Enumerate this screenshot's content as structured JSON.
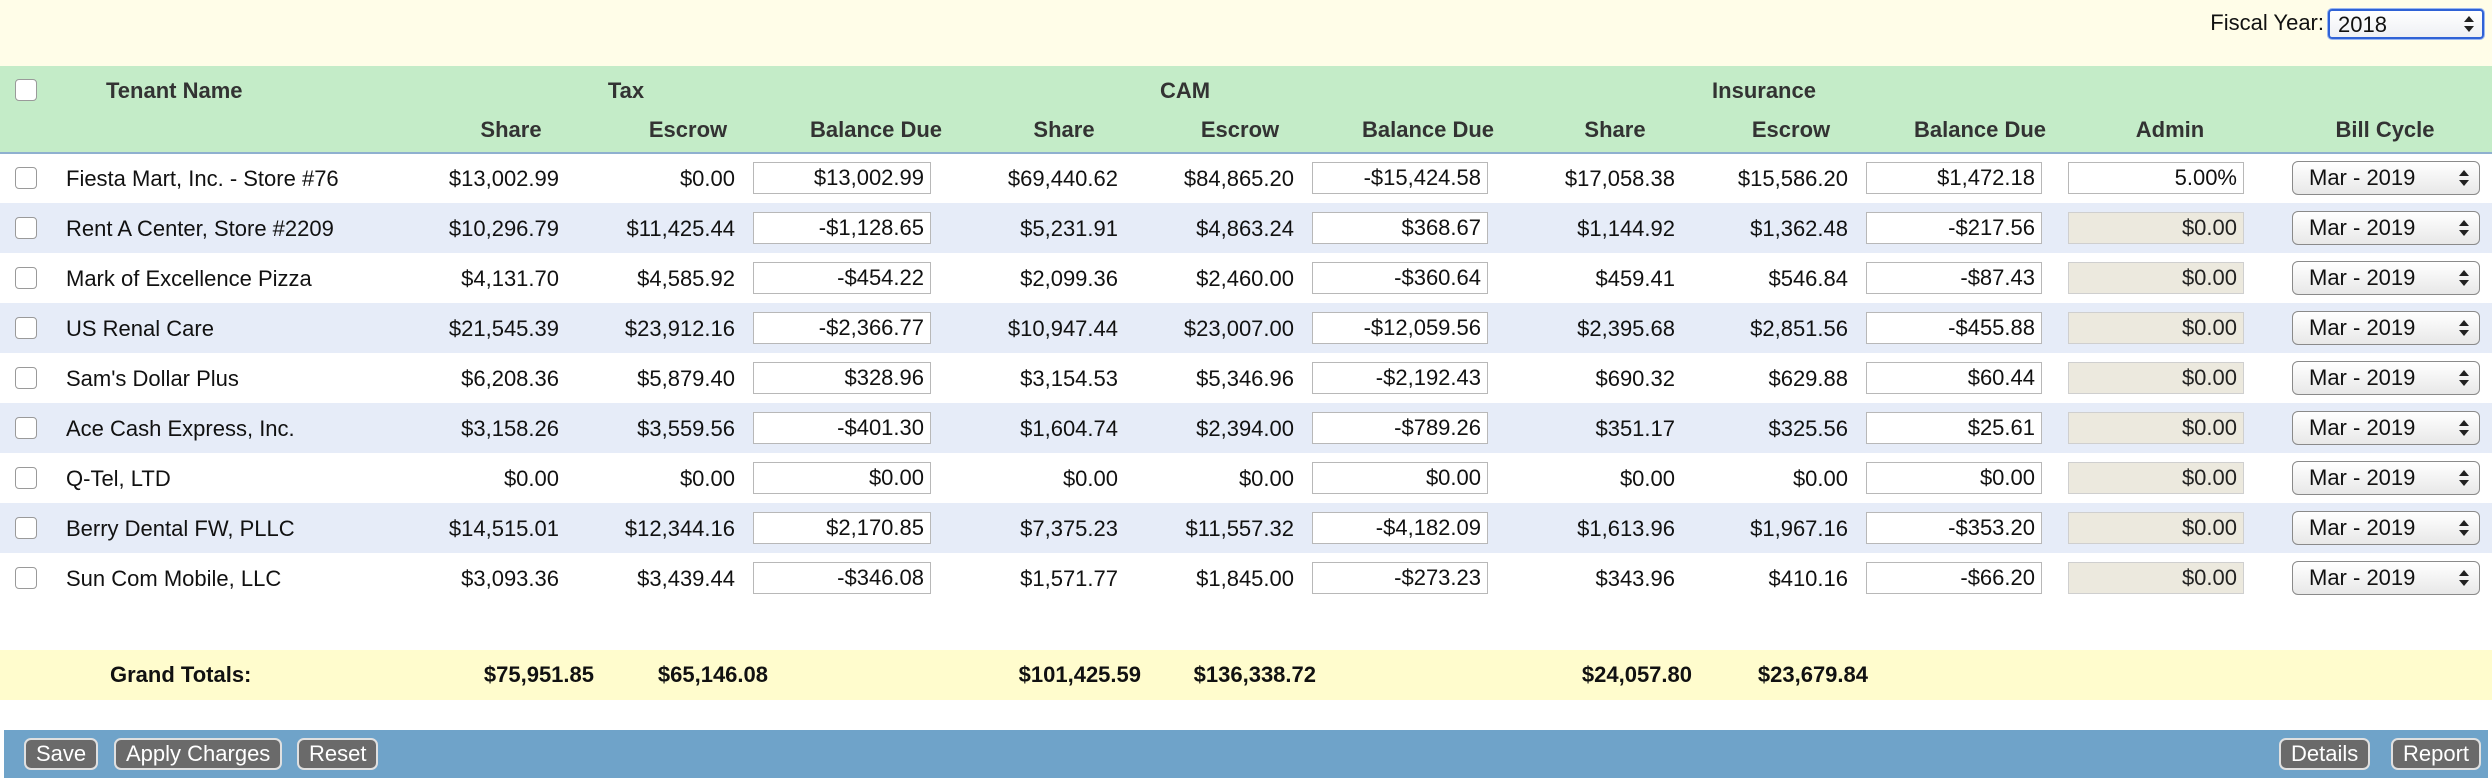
{
  "fiscal_year": {
    "label": "Fiscal Year:",
    "value": "2018"
  },
  "header": {
    "tenant_name": "Tenant Name",
    "groups": {
      "tax": "Tax",
      "cam": "CAM",
      "insurance": "Insurance"
    },
    "share": "Share",
    "escrow": "Escrow",
    "balance_due": "Balance Due",
    "admin": "Admin",
    "bill_cycle": "Bill Cycle"
  },
  "rows": [
    {
      "name": "Fiesta Mart, Inc. - Store #76",
      "tax_share": "$13,002.99",
      "tax_escrow": "$0.00",
      "tax_balance": "$13,002.99",
      "cam_share": "$69,440.62",
      "cam_escrow": "$84,865.20",
      "cam_balance": "-$15,424.58",
      "ins_share": "$17,058.38",
      "ins_escrow": "$15,586.20",
      "ins_balance": "$1,472.18",
      "admin": "5.00%",
      "bill_cycle": "Mar - 2019"
    },
    {
      "name": "Rent A Center, Store #2209",
      "tax_share": "$10,296.79",
      "tax_escrow": "$11,425.44",
      "tax_balance": "-$1,128.65",
      "cam_share": "$5,231.91",
      "cam_escrow": "$4,863.24",
      "cam_balance": "$368.67",
      "ins_share": "$1,144.92",
      "ins_escrow": "$1,362.48",
      "ins_balance": "-$217.56",
      "admin": "$0.00",
      "bill_cycle": "Mar - 2019"
    },
    {
      "name": "Mark of Excellence Pizza",
      "tax_share": "$4,131.70",
      "tax_escrow": "$4,585.92",
      "tax_balance": "-$454.22",
      "cam_share": "$2,099.36",
      "cam_escrow": "$2,460.00",
      "cam_balance": "-$360.64",
      "ins_share": "$459.41",
      "ins_escrow": "$546.84",
      "ins_balance": "-$87.43",
      "admin": "$0.00",
      "bill_cycle": "Mar - 2019"
    },
    {
      "name": "US Renal Care",
      "tax_share": "$21,545.39",
      "tax_escrow": "$23,912.16",
      "tax_balance": "-$2,366.77",
      "cam_share": "$10,947.44",
      "cam_escrow": "$23,007.00",
      "cam_balance": "-$12,059.56",
      "ins_share": "$2,395.68",
      "ins_escrow": "$2,851.56",
      "ins_balance": "-$455.88",
      "admin": "$0.00",
      "bill_cycle": "Mar - 2019"
    },
    {
      "name": "Sam's Dollar Plus",
      "tax_share": "$6,208.36",
      "tax_escrow": "$5,879.40",
      "tax_balance": "$328.96",
      "cam_share": "$3,154.53",
      "cam_escrow": "$5,346.96",
      "cam_balance": "-$2,192.43",
      "ins_share": "$690.32",
      "ins_escrow": "$629.88",
      "ins_balance": "$60.44",
      "admin": "$0.00",
      "bill_cycle": "Mar - 2019"
    },
    {
      "name": "Ace Cash Express, Inc.",
      "tax_share": "$3,158.26",
      "tax_escrow": "$3,559.56",
      "tax_balance": "-$401.30",
      "cam_share": "$1,604.74",
      "cam_escrow": "$2,394.00",
      "cam_balance": "-$789.26",
      "ins_share": "$351.17",
      "ins_escrow": "$325.56",
      "ins_balance": "$25.61",
      "admin": "$0.00",
      "bill_cycle": "Mar - 2019"
    },
    {
      "name": "Q-Tel, LTD",
      "tax_share": "$0.00",
      "tax_escrow": "$0.00",
      "tax_balance": "$0.00",
      "cam_share": "$0.00",
      "cam_escrow": "$0.00",
      "cam_balance": "$0.00",
      "ins_share": "$0.00",
      "ins_escrow": "$0.00",
      "ins_balance": "$0.00",
      "admin": "$0.00",
      "bill_cycle": "Mar - 2019"
    },
    {
      "name": "Berry Dental FW, PLLC",
      "tax_share": "$14,515.01",
      "tax_escrow": "$12,344.16",
      "tax_balance": "$2,170.85",
      "cam_share": "$7,375.23",
      "cam_escrow": "$11,557.32",
      "cam_balance": "-$4,182.09",
      "ins_share": "$1,613.96",
      "ins_escrow": "$1,967.16",
      "ins_balance": "-$353.20",
      "admin": "$0.00",
      "bill_cycle": "Mar - 2019"
    },
    {
      "name": "Sun Com Mobile, LLC",
      "tax_share": "$3,093.36",
      "tax_escrow": "$3,439.44",
      "tax_balance": "-$346.08",
      "cam_share": "$1,571.77",
      "cam_escrow": "$1,845.00",
      "cam_balance": "-$273.23",
      "ins_share": "$343.96",
      "ins_escrow": "$410.16",
      "ins_balance": "-$66.20",
      "admin": "$0.00",
      "bill_cycle": "Mar - 2019"
    }
  ],
  "totals": {
    "label": "Grand Totals:",
    "tax_share": "$75,951.85",
    "tax_escrow": "$65,146.08",
    "cam_share": "$101,425.59",
    "cam_escrow": "$136,338.72",
    "ins_share": "$24,057.80",
    "ins_escrow": "$23,679.84"
  },
  "footer": {
    "save": "Save",
    "apply_charges": "Apply Charges",
    "reset": "Reset",
    "details": "Details",
    "report": "Report"
  },
  "colors": {
    "header_bg": "#c4ecc8",
    "alt_row_bg": "#e6ecf8",
    "totals_bg": "#fffccd",
    "footer_bg": "#6fa3c9",
    "top_bg": "#fffde8"
  }
}
